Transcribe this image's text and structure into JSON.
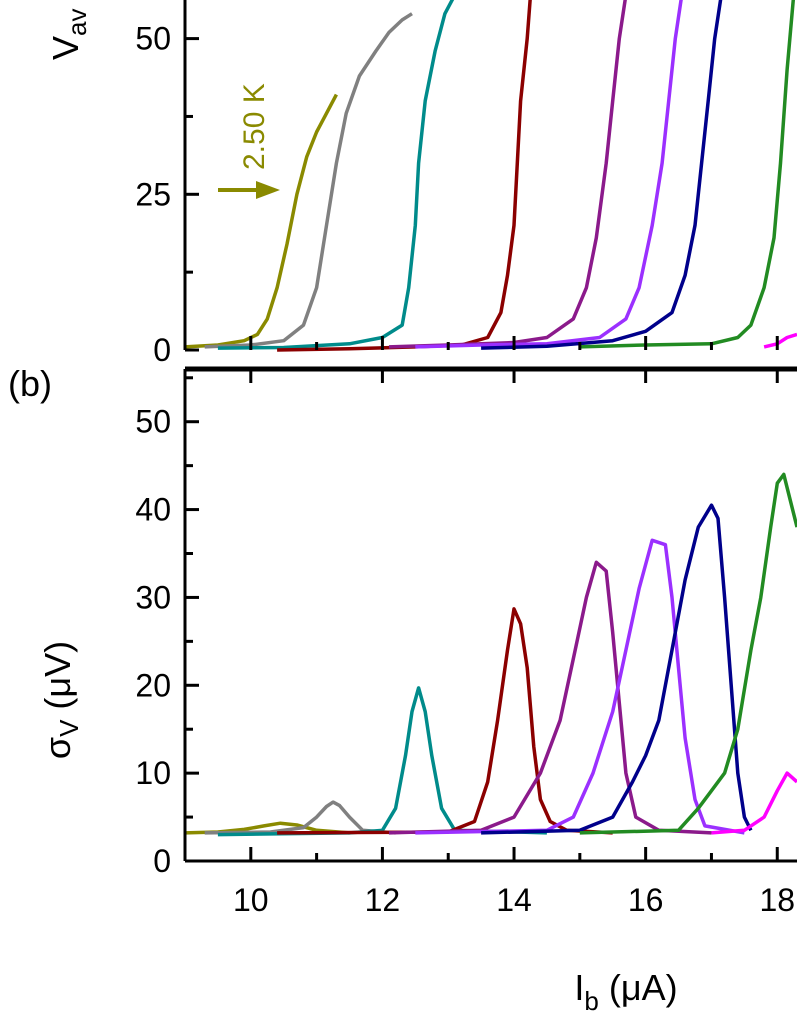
{
  "chart_data": [
    {
      "type": "line",
      "panel_label": "",
      "ylabel_main": "V",
      "ylabel_sub": "av",
      "xlim": [
        9,
        18.3
      ],
      "ylim": [
        0,
        57
      ],
      "yticks": [
        "0",
        "25",
        "50"
      ],
      "yticks_values": [
        0,
        25,
        50
      ],
      "annotation": "2.50 K",
      "annotation_color": "#8a8a00",
      "annotation_arrow_point": {
        "x": 10.6,
        "y": 25
      },
      "series": [
        {
          "color": "#8a8a00",
          "points": [
            [
              9.0,
              0.5
            ],
            [
              9.5,
              0.8
            ],
            [
              9.9,
              1.5
            ],
            [
              10.1,
              2.5
            ],
            [
              10.25,
              5
            ],
            [
              10.4,
              10
            ],
            [
              10.55,
              17
            ],
            [
              10.7,
              25
            ],
            [
              10.85,
              31
            ],
            [
              11.0,
              35
            ],
            [
              11.15,
              38
            ],
            [
              11.3,
              41
            ]
          ]
        },
        {
          "color": "#808080",
          "points": [
            [
              9.3,
              0.5
            ],
            [
              10.0,
              0.8
            ],
            [
              10.5,
              1.5
            ],
            [
              10.8,
              4
            ],
            [
              11.0,
              10
            ],
            [
              11.15,
              20
            ],
            [
              11.3,
              30
            ],
            [
              11.45,
              38
            ],
            [
              11.65,
              44
            ],
            [
              11.9,
              48
            ],
            [
              12.1,
              51
            ],
            [
              12.3,
              53
            ],
            [
              12.45,
              54
            ]
          ]
        },
        {
          "color": "#008b8b",
          "points": [
            [
              9.5,
              0.3
            ],
            [
              10.5,
              0.4
            ],
            [
              11.5,
              1
            ],
            [
              12.0,
              2
            ],
            [
              12.3,
              4
            ],
            [
              12.4,
              10
            ],
            [
              12.5,
              20
            ],
            [
              12.55,
              30
            ],
            [
              12.65,
              40
            ],
            [
              12.8,
              48
            ],
            [
              12.95,
              54
            ],
            [
              13.1,
              57
            ]
          ]
        },
        {
          "color": "#8b0000",
          "points": [
            [
              10.4,
              0
            ],
            [
              11.5,
              0.2
            ],
            [
              12.5,
              0.5
            ],
            [
              13.2,
              0.8
            ],
            [
              13.6,
              2
            ],
            [
              13.8,
              6
            ],
            [
              13.9,
              12
            ],
            [
              14.0,
              20
            ],
            [
              14.05,
              30
            ],
            [
              14.1,
              40
            ],
            [
              14.2,
              50
            ],
            [
              14.25,
              57
            ]
          ]
        },
        {
          "color": "#8b1a8b",
          "points": [
            [
              12.1,
              0.5
            ],
            [
              13.0,
              0.8
            ],
            [
              14.0,
              1.2
            ],
            [
              14.5,
              2
            ],
            [
              14.9,
              5
            ],
            [
              15.1,
              10
            ],
            [
              15.25,
              18
            ],
            [
              15.4,
              30
            ],
            [
              15.5,
              40
            ],
            [
              15.6,
              50
            ],
            [
              15.7,
              57
            ]
          ]
        },
        {
          "color": "#9b30ff",
          "points": [
            [
              12.5,
              0.5
            ],
            [
              13.5,
              0.8
            ],
            [
              14.5,
              1
            ],
            [
              15.3,
              2
            ],
            [
              15.7,
              5
            ],
            [
              15.9,
              10
            ],
            [
              16.1,
              20
            ],
            [
              16.25,
              30
            ],
            [
              16.35,
              40
            ],
            [
              16.45,
              50
            ],
            [
              16.55,
              57
            ]
          ]
        },
        {
          "color": "#00008b",
          "points": [
            [
              13.5,
              0.3
            ],
            [
              14.5,
              0.6
            ],
            [
              15.5,
              1.5
            ],
            [
              16.0,
              3
            ],
            [
              16.4,
              6
            ],
            [
              16.6,
              12
            ],
            [
              16.75,
              20
            ],
            [
              16.85,
              30
            ],
            [
              16.95,
              40
            ],
            [
              17.05,
              50
            ],
            [
              17.15,
              57
            ]
          ]
        },
        {
          "color": "#228b22",
          "points": [
            [
              15.0,
              0.5
            ],
            [
              16.0,
              0.8
            ],
            [
              17.0,
              1
            ],
            [
              17.4,
              2
            ],
            [
              17.6,
              4
            ],
            [
              17.8,
              10
            ],
            [
              17.95,
              18
            ],
            [
              18.05,
              30
            ],
            [
              18.15,
              45
            ],
            [
              18.25,
              57
            ]
          ]
        },
        {
          "color": "#ff00ff",
          "points": [
            [
              17.8,
              0.5
            ],
            [
              18.0,
              1
            ],
            [
              18.15,
              2
            ],
            [
              18.3,
              2.5
            ]
          ]
        }
      ]
    },
    {
      "type": "line",
      "panel_label": "(b)",
      "ylabel_main": "σ",
      "ylabel_sub": "V",
      "ylabel_unit": " (μV)",
      "xlabel_main": "I",
      "xlabel_sub": "b",
      "xlabel_unit": " (μA)",
      "xlim": [
        9,
        18.3
      ],
      "ylim": [
        0,
        56
      ],
      "yticks": [
        "0",
        "10",
        "20",
        "30",
        "40",
        "50"
      ],
      "yticks_values": [
        0,
        10,
        20,
        30,
        40,
        50
      ],
      "xticks": [
        "10",
        "12",
        "14",
        "16",
        "18"
      ],
      "xticks_values": [
        10,
        12,
        14,
        16,
        18
      ],
      "series": [
        {
          "color": "#8a8a00",
          "points": [
            [
              9.0,
              3.2
            ],
            [
              9.5,
              3.3
            ],
            [
              9.9,
              3.6
            ],
            [
              10.2,
              4.0
            ],
            [
              10.45,
              4.3
            ],
            [
              10.7,
              4.1
            ],
            [
              11.0,
              3.5
            ],
            [
              11.5,
              3.2
            ]
          ]
        },
        {
          "color": "#808080",
          "points": [
            [
              9.3,
              3.2
            ],
            [
              10.3,
              3.3
            ],
            [
              10.8,
              3.8
            ],
            [
              11.0,
              5
            ],
            [
              11.15,
              6.2
            ],
            [
              11.25,
              6.7
            ],
            [
              11.35,
              6.3
            ],
            [
              11.5,
              5
            ],
            [
              11.7,
              3.5
            ],
            [
              12.2,
              3.2
            ]
          ]
        },
        {
          "color": "#008b8b",
          "points": [
            [
              9.5,
              3.0
            ],
            [
              11.5,
              3.2
            ],
            [
              12.0,
              3.5
            ],
            [
              12.2,
              6
            ],
            [
              12.35,
              12
            ],
            [
              12.45,
              17
            ],
            [
              12.55,
              19.7
            ],
            [
              12.65,
              17
            ],
            [
              12.75,
              12
            ],
            [
              12.9,
              6
            ],
            [
              13.1,
              3.5
            ],
            [
              14.5,
              3.2
            ]
          ]
        },
        {
          "color": "#8b0000",
          "points": [
            [
              10.4,
              3.2
            ],
            [
              13.0,
              3.3
            ],
            [
              13.4,
              4.5
            ],
            [
              13.6,
              9
            ],
            [
              13.75,
              16
            ],
            [
              13.9,
              24
            ],
            [
              14.0,
              28.7
            ],
            [
              14.1,
              27
            ],
            [
              14.2,
              22
            ],
            [
              14.3,
              13
            ],
            [
              14.4,
              7
            ],
            [
              14.55,
              4.5
            ],
            [
              14.8,
              3.5
            ],
            [
              15.5,
              3.2
            ]
          ]
        },
        {
          "color": "#8b1a8b",
          "points": [
            [
              12.1,
              3.2
            ],
            [
              13.5,
              3.5
            ],
            [
              14.0,
              5
            ],
            [
              14.4,
              10
            ],
            [
              14.7,
              16
            ],
            [
              14.9,
              23
            ],
            [
              15.1,
              30
            ],
            [
              15.25,
              34
            ],
            [
              15.4,
              33
            ],
            [
              15.5,
              26
            ],
            [
              15.6,
              18
            ],
            [
              15.7,
              10
            ],
            [
              15.85,
              5
            ],
            [
              16.2,
              3.5
            ],
            [
              17.0,
              3.2
            ]
          ]
        },
        {
          "color": "#9b30ff",
          "points": [
            [
              12.5,
              3.2
            ],
            [
              14.5,
              3.5
            ],
            [
              14.9,
              5
            ],
            [
              15.2,
              10
            ],
            [
              15.5,
              17
            ],
            [
              15.7,
              24
            ],
            [
              15.9,
              31
            ],
            [
              16.1,
              36.5
            ],
            [
              16.3,
              36
            ],
            [
              16.4,
              30
            ],
            [
              16.5,
              22
            ],
            [
              16.6,
              14
            ],
            [
              16.75,
              7
            ],
            [
              16.9,
              4
            ],
            [
              17.5,
              3.2
            ]
          ]
        },
        {
          "color": "#00008b",
          "points": [
            [
              13.5,
              3.2
            ],
            [
              15.0,
              3.5
            ],
            [
              15.5,
              5
            ],
            [
              15.8,
              9
            ],
            [
              16.0,
              12
            ],
            [
              16.2,
              16
            ],
            [
              16.4,
              24
            ],
            [
              16.6,
              32
            ],
            [
              16.8,
              38
            ],
            [
              17.0,
              40.5
            ],
            [
              17.1,
              39
            ],
            [
              17.2,
              30
            ],
            [
              17.3,
              20
            ],
            [
              17.4,
              10
            ],
            [
              17.5,
              5
            ],
            [
              17.6,
              3.5
            ]
          ]
        },
        {
          "color": "#228b22",
          "points": [
            [
              15.0,
              3.2
            ],
            [
              16.5,
              3.5
            ],
            [
              16.8,
              6
            ],
            [
              17.0,
              8
            ],
            [
              17.2,
              10
            ],
            [
              17.4,
              15
            ],
            [
              17.6,
              24
            ],
            [
              17.75,
              30
            ],
            [
              17.9,
              38
            ],
            [
              18.0,
              43
            ],
            [
              18.1,
              44
            ],
            [
              18.2,
              41
            ],
            [
              18.3,
              38
            ]
          ]
        },
        {
          "color": "#ff00ff",
          "points": [
            [
              17.0,
              3.2
            ],
            [
              17.5,
              3.5
            ],
            [
              17.8,
              5
            ],
            [
              18.0,
              8
            ],
            [
              18.15,
              10
            ],
            [
              18.3,
              9
            ]
          ]
        }
      ]
    }
  ]
}
